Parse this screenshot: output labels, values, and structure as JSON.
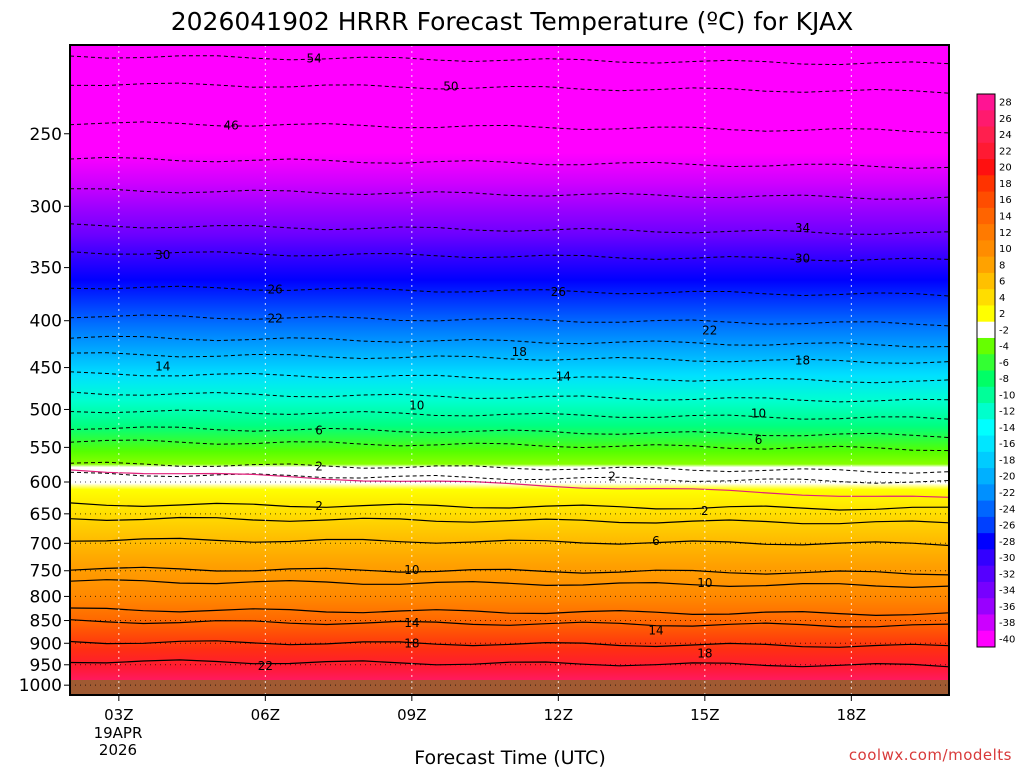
{
  "chart_data": {
    "type": "heatmap",
    "title": "2026041902 HRRR Forecast Temperature (ºC) for KJAX",
    "xlabel": "Forecast Time (UTC)",
    "ylabel": "",
    "credit": "coolwx.com/modelts",
    "x_ticks": [
      {
        "hour": 3,
        "label": "03Z"
      },
      {
        "hour": 6,
        "label": "06Z"
      },
      {
        "hour": 9,
        "label": "09Z"
      },
      {
        "hour": 12,
        "label": "12Z"
      },
      {
        "hour": 15,
        "label": "15Z"
      },
      {
        "hour": 18,
        "label": "18Z"
      }
    ],
    "x_date_lines": [
      "19APR",
      "2026"
    ],
    "xlim_hours": [
      2,
      20
    ],
    "y_pressure_ticks": [
      250,
      300,
      350,
      400,
      450,
      500,
      550,
      600,
      650,
      700,
      750,
      800,
      850,
      900,
      950,
      1000
    ],
    "ylim_hpa": [
      200,
      1025
    ],
    "colorbar_levels": [
      28,
      26,
      24,
      22,
      20,
      18,
      16,
      14,
      12,
      10,
      8,
      6,
      4,
      2,
      -2,
      -4,
      -6,
      -8,
      -10,
      -12,
      -14,
      -16,
      -18,
      -20,
      -22,
      -24,
      -26,
      -28,
      -30,
      -32,
      -34,
      -36,
      -38,
      -40
    ],
    "colorbar_colors": [
      "#ff1493",
      "#ff1a6e",
      "#ff1f4e",
      "#ff1a33",
      "#ff1010",
      "#ff3300",
      "#ff4d00",
      "#ff6400",
      "#ff7a00",
      "#ff8c00",
      "#ffa200",
      "#ffc000",
      "#ffdd00",
      "#ffff00",
      "#ffffff",
      "#66ff00",
      "#33ff33",
      "#00ff66",
      "#00ff99",
      "#00ffcc",
      "#00ffff",
      "#00e6ff",
      "#00ccff",
      "#00b0ff",
      "#0090ff",
      "#0066ff",
      "#0040ff",
      "#0000ff",
      "#3300ff",
      "#5500ff",
      "#7700ff",
      "#9900ff",
      "#cc00ff",
      "#ff00ff"
    ],
    "temperature_profile_at_03Z": [
      {
        "p": 200,
        "t": -56
      },
      {
        "p": 250,
        "t": -46
      },
      {
        "p": 300,
        "t": -36
      },
      {
        "p": 350,
        "t": -29
      },
      {
        "p": 400,
        "t": -22
      },
      {
        "p": 450,
        "t": -14
      },
      {
        "p": 500,
        "t": -10
      },
      {
        "p": 550,
        "t": -3
      },
      {
        "p": 600,
        "t": 0
      },
      {
        "p": 650,
        "t": 3
      },
      {
        "p": 700,
        "t": 6
      },
      {
        "p": 750,
        "t": 9
      },
      {
        "p": 800,
        "t": 12
      },
      {
        "p": 850,
        "t": 14
      },
      {
        "p": 900,
        "t": 18
      },
      {
        "p": 950,
        "t": 21
      },
      {
        "p": 1000,
        "t": 23
      }
    ],
    "contour_labels": [
      {
        "text": "54",
        "hour": 7.0,
        "p": 207
      },
      {
        "text": "50",
        "hour": 9.8,
        "p": 222
      },
      {
        "text": "46",
        "hour": 5.3,
        "p": 245
      },
      {
        "text": "34",
        "hour": 17.0,
        "p": 317
      },
      {
        "text": "30",
        "hour": 3.9,
        "p": 339
      },
      {
        "text": "30",
        "hour": 17.0,
        "p": 342
      },
      {
        "text": "26",
        "hour": 6.2,
        "p": 370
      },
      {
        "text": "26",
        "hour": 12.0,
        "p": 372
      },
      {
        "text": "22",
        "hour": 6.2,
        "p": 398
      },
      {
        "text": "22",
        "hour": 15.1,
        "p": 410
      },
      {
        "text": "18",
        "hour": 11.2,
        "p": 433
      },
      {
        "text": "18",
        "hour": 17.0,
        "p": 442
      },
      {
        "text": "14",
        "hour": 3.9,
        "p": 449
      },
      {
        "text": "14",
        "hour": 12.1,
        "p": 460
      },
      {
        "text": "10",
        "hour": 9.1,
        "p": 495
      },
      {
        "text": "10",
        "hour": 16.1,
        "p": 505
      },
      {
        "text": "6",
        "hour": 7.1,
        "p": 527
      },
      {
        "text": "6",
        "hour": 16.1,
        "p": 540
      },
      {
        "text": "2",
        "hour": 7.1,
        "p": 577
      },
      {
        "text": "2",
        "hour": 13.1,
        "p": 592
      },
      {
        "text": "2",
        "hour": 7.1,
        "p": 637
      },
      {
        "text": "2",
        "hour": 15.0,
        "p": 645
      },
      {
        "text": "6",
        "hour": 14.0,
        "p": 696
      },
      {
        "text": "10",
        "hour": 9.0,
        "p": 749
      },
      {
        "text": "10",
        "hour": 15.0,
        "p": 773
      },
      {
        "text": "14",
        "hour": 9.0,
        "p": 855
      },
      {
        "text": "14",
        "hour": 14.0,
        "p": 872
      },
      {
        "text": "18",
        "hour": 9.0,
        "p": 900
      },
      {
        "text": "18",
        "hour": 15.0,
        "p": 923
      },
      {
        "text": "22",
        "hour": 6.0,
        "p": 953
      }
    ]
  }
}
